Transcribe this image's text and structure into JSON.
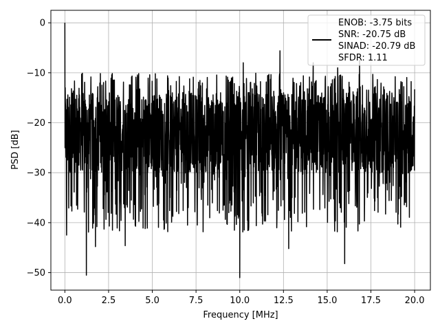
{
  "chart_data": {
    "type": "line",
    "xlabel": "Frequency [MHz]",
    "ylabel": "PSD [dB]",
    "xlim": [
      -0.8,
      20.9
    ],
    "ylim": [
      -53.5,
      2.5
    ],
    "xticks": [
      0.0,
      2.5,
      5.0,
      7.5,
      10.0,
      12.5,
      15.0,
      17.5,
      20.0
    ],
    "xtick_labels": [
      "0.0",
      "2.5",
      "5.0",
      "7.5",
      "10.0",
      "12.5",
      "15.0",
      "17.5",
      "20.0"
    ],
    "yticks": [
      0,
      -10,
      -20,
      -30,
      -40,
      -50
    ],
    "ytick_labels": [
      "0",
      "−10",
      "−20",
      "−30",
      "−40",
      "−50"
    ],
    "grid": true,
    "legend_position": "top-right",
    "colors": {
      "series": "#000000",
      "grid": "#b0b0b0",
      "axes": "#000000"
    },
    "series": [
      {
        "name": "ENOB: -3.75 bits\nSNR: -20.75 dB\nSINAD: -20.79 dB\nSFDR: 1.11",
        "x_range": [
          0.0,
          20.0
        ],
        "points": 2000,
        "peak": {
          "x": 0.0,
          "y": 0.0
        },
        "typical_level_range": [
          -30,
          -14
        ],
        "notable_minima": [
          {
            "x": 1.23,
            "y": -50.5
          },
          {
            "x": 10.0,
            "y": -51.0
          },
          {
            "x": 10.2,
            "y": -48.0
          },
          {
            "x": 16.0,
            "y": -48.2
          },
          {
            "x": 3.45,
            "y": -44.6
          },
          {
            "x": 1.75,
            "y": -44.8
          },
          {
            "x": 12.8,
            "y": -45.2
          },
          {
            "x": 0.1,
            "y": -42.5
          }
        ],
        "notable_maxima": [
          {
            "x": 12.3,
            "y": -5.6
          },
          {
            "x": 16.85,
            "y": -7.5
          },
          {
            "x": 10.2,
            "y": -8.0
          },
          {
            "x": 14.2,
            "y": -8.0
          },
          {
            "x": 15.6,
            "y": -9.0
          },
          {
            "x": 20.0,
            "y": -13.3
          }
        ]
      }
    ],
    "legend_lines": [
      "ENOB: -3.75 bits",
      "SNR: -20.75 dB",
      "SINAD: -20.79 dB",
      "SFDR: 1.11"
    ]
  }
}
